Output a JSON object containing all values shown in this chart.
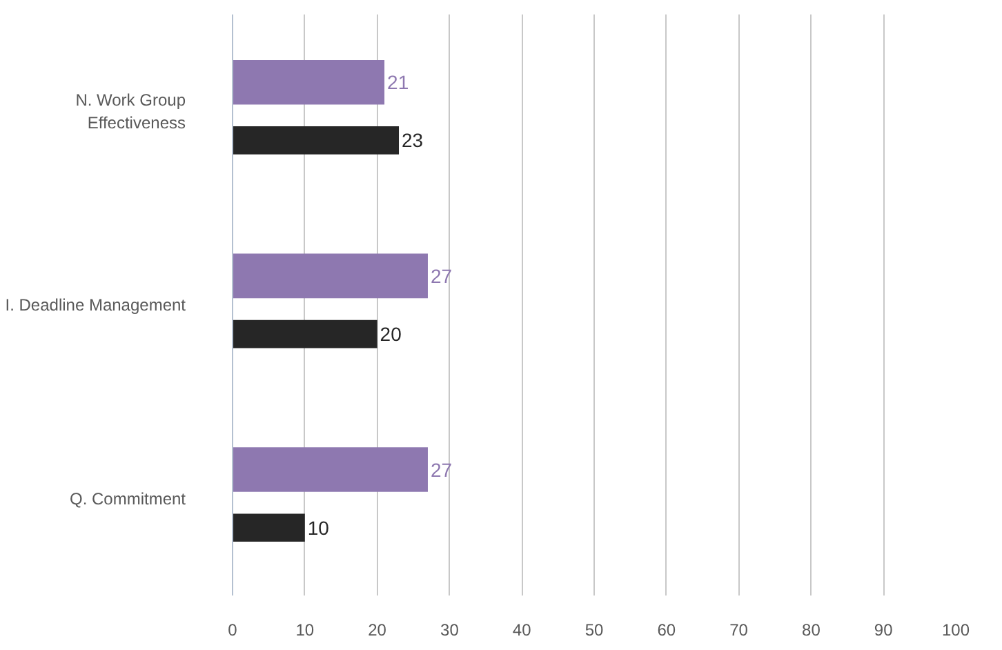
{
  "chart_data": {
    "type": "bar",
    "orientation": "horizontal",
    "categories": [
      "N. Work Group Effectiveness",
      "I. Deadline Management",
      "Q. Commitment"
    ],
    "series": [
      {
        "color": "#8e78b0",
        "values": [
          21,
          27,
          27
        ]
      },
      {
        "color": "#262626",
        "values": [
          23,
          20,
          10
        ]
      }
    ],
    "xlim": [
      0,
      100
    ],
    "xticks": [
      0,
      10,
      20,
      30,
      40,
      50,
      60,
      70,
      80,
      90,
      100
    ],
    "grid": "x",
    "data_labels": true
  }
}
